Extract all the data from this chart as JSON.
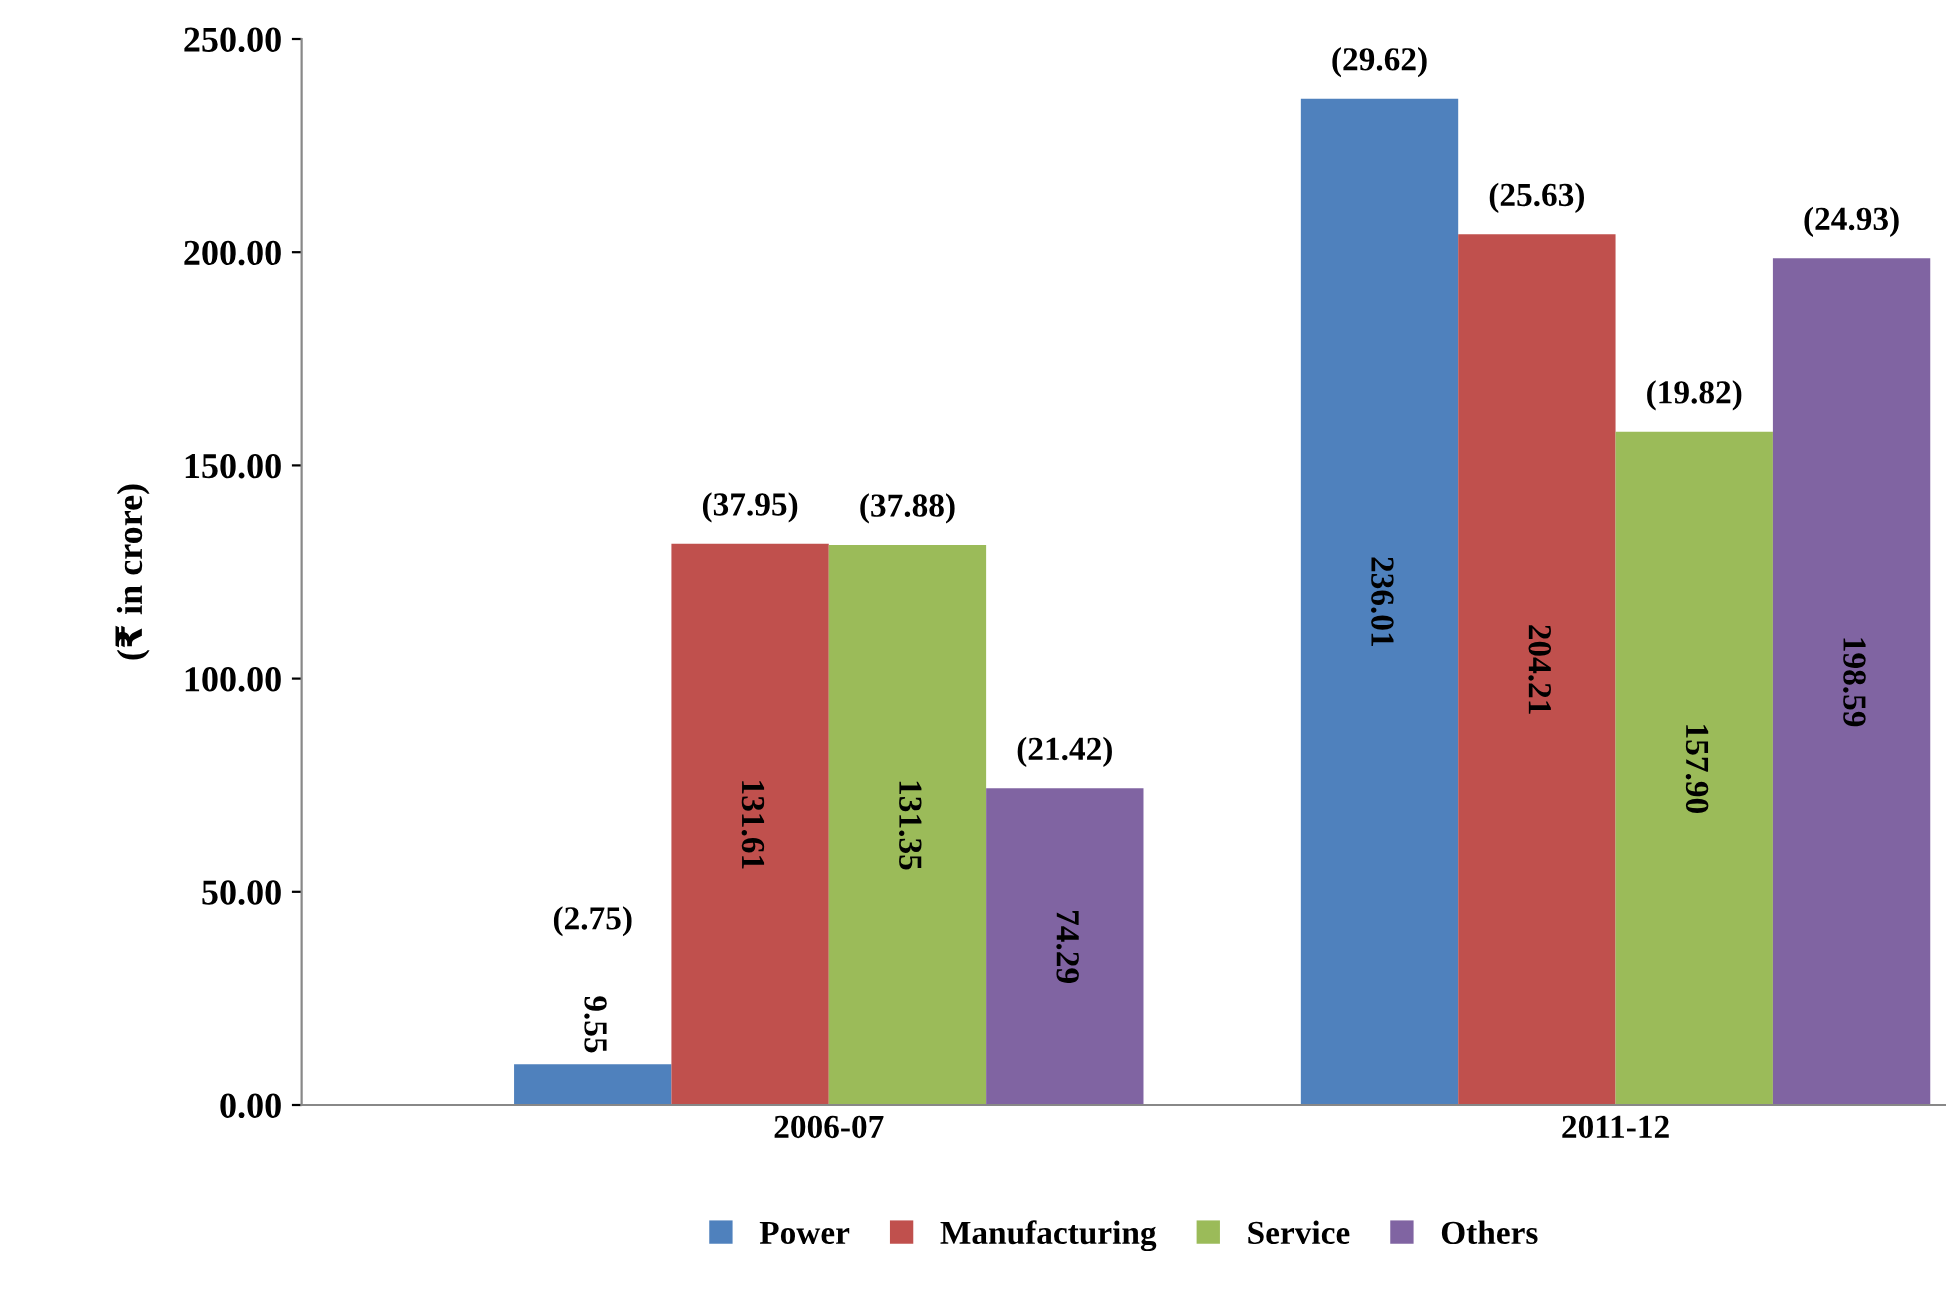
{
  "chart_data": {
    "type": "bar",
    "ylabel": "(₹ in crore)",
    "categories": [
      "2006-07",
      "2011-12"
    ],
    "series": [
      {
        "name": "Power",
        "color": "#4f81bd",
        "values": [
          9.55,
          236.01
        ],
        "value_labels": [
          "9.55",
          "236.01"
        ]
      },
      {
        "name": "Manufacturing",
        "color": "#c0504d",
        "values": [
          131.61,
          204.21
        ],
        "value_labels": [
          "131.61",
          "204.21"
        ]
      },
      {
        "name": "Service",
        "color": "#9bbb59",
        "values": [
          131.35,
          157.9
        ],
        "value_labels": [
          "131.35",
          "157.90"
        ]
      },
      {
        "name": "Others",
        "color": "#8064a2",
        "values": [
          74.29,
          198.59
        ],
        "value_labels": [
          "74.29",
          "198.59"
        ]
      }
    ],
    "annotations": [
      "(2.75)",
      "(37.95)",
      "(37.88)",
      "(21.42)",
      "(29.62)",
      "(25.63)",
      "(19.82)",
      "(24.93)"
    ],
    "ylim": [
      0,
      250
    ],
    "yticks": [
      {
        "value": 0,
        "label": "0.00"
      },
      {
        "value": 50,
        "label": "50.00"
      },
      {
        "value": 100,
        "label": "100.00"
      },
      {
        "value": 150,
        "label": "150.00"
      },
      {
        "value": 200,
        "label": "200.00"
      },
      {
        "value": 250,
        "label": "250.00"
      }
    ],
    "grid": false,
    "legend": "bottom"
  }
}
